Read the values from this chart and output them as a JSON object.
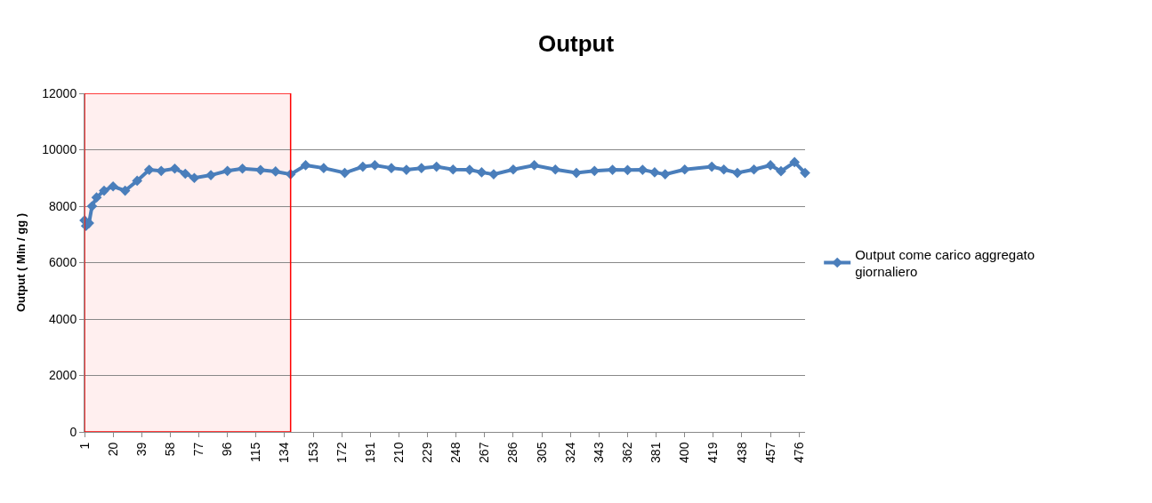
{
  "chart_data": {
    "type": "line",
    "title": "Output",
    "ylabel": "Output ( Min / gg )",
    "x": [
      1,
      2,
      4,
      6,
      9,
      14,
      20,
      28,
      36,
      44,
      52,
      61,
      68,
      74,
      85,
      96,
      106,
      118,
      128,
      138,
      148,
      160,
      174,
      186,
      194,
      205,
      215,
      225,
      235,
      246,
      257,
      265,
      273,
      286,
      300,
      314,
      328,
      340,
      352,
      362,
      372,
      380,
      387,
      400,
      418,
      426,
      435,
      446,
      457,
      464,
      473,
      480
    ],
    "series": [
      {
        "name": "Output come carico aggregato giornaliero",
        "color": "#4a7ebb",
        "values": [
          7500,
          7300,
          7400,
          8000,
          8310,
          8550,
          8700,
          8550,
          8900,
          9290,
          9250,
          9330,
          9150,
          9000,
          9100,
          9250,
          9330,
          9280,
          9230,
          9130,
          9450,
          9350,
          9180,
          9400,
          9450,
          9350,
          9290,
          9350,
          9400,
          9300,
          9290,
          9200,
          9130,
          9300,
          9450,
          9300,
          9180,
          9250,
          9290,
          9280,
          9290,
          9200,
          9130,
          9300,
          9400,
          9300,
          9180,
          9300,
          9450,
          9240,
          9560,
          9180
        ]
      }
    ],
    "xlim": [
      1,
      480
    ],
    "xticks": [
      1,
      20,
      39,
      58,
      77,
      96,
      115,
      134,
      153,
      172,
      191,
      210,
      229,
      248,
      267,
      286,
      305,
      324,
      343,
      362,
      381,
      400,
      419,
      438,
      457,
      476
    ],
    "ylim": [
      0,
      12000
    ],
    "yticks": [
      0,
      2000,
      4000,
      6000,
      8000,
      10000,
      12000
    ],
    "bands": [
      {
        "axis": "x",
        "from": 1,
        "to": 138,
        "color": "#ff0000"
      }
    ],
    "grid": "y",
    "legend": "right",
    "marker": "diamond",
    "line_style": "solid"
  }
}
